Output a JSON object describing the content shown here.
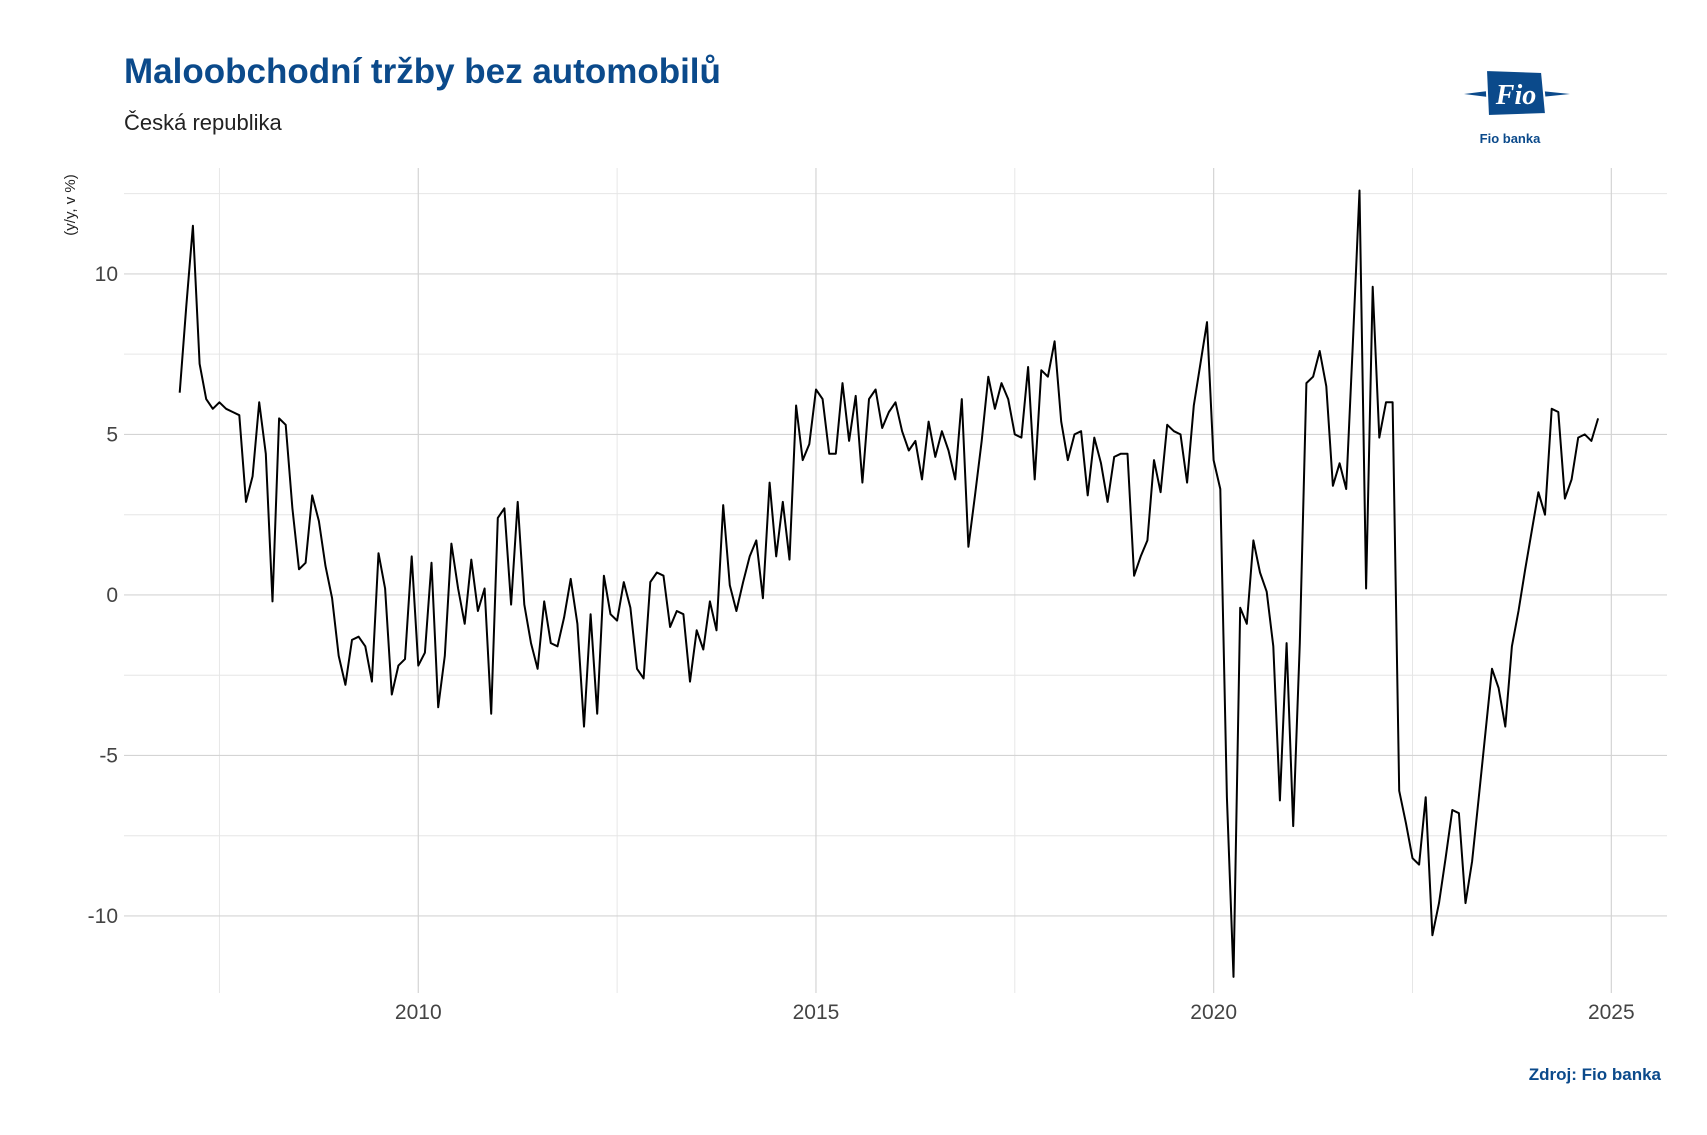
{
  "header": {
    "title": "Maloobchodní tržby bez automobilů",
    "subtitle": "Česká republika"
  },
  "footer": {
    "source": "Zdroj: Fio banka"
  },
  "logo": {
    "wordmark": "Fio",
    "caption": "Fio banka",
    "icon": "fio-banka-logo",
    "color": "#0b4a8b"
  },
  "chart_data": {
    "type": "line",
    "title": "Maloobchodní tržby bez automobilů",
    "subtitle": "Česká republika",
    "ylabel": "(y/y, v %)",
    "xlabel": "",
    "xlim": [
      2006.3,
      2025.7
    ],
    "ylim": [
      -12.4,
      13.3
    ],
    "x_ticks": [
      2010,
      2015,
      2020,
      2025
    ],
    "x_tick_labels": [
      "2010",
      "2015",
      "2020",
      "2025"
    ],
    "y_ticks": [
      -10,
      -5,
      0,
      5,
      10
    ],
    "y_tick_labels": [
      "-10",
      "-5",
      "0",
      "5",
      "10"
    ],
    "grid": true,
    "line_color": "#000000",
    "series": [
      {
        "start": "2007-01",
        "frequency": "monthly",
        "values": [
          6.3,
          9.0,
          11.5,
          7.2,
          6.1,
          5.8,
          6.0,
          5.8,
          5.7,
          5.6,
          2.9,
          3.7,
          6.0,
          4.4,
          -0.2,
          5.5,
          5.3,
          2.7,
          0.8,
          1.0,
          3.1,
          2.3,
          0.9,
          -0.1,
          -1.9,
          -2.8,
          -1.4,
          -1.3,
          -1.6,
          -2.7,
          1.3,
          0.2,
          -3.1,
          -2.2,
          -2.0,
          1.2,
          -2.2,
          -1.8,
          1.0,
          -3.5,
          -1.9,
          1.6,
          0.2,
          -0.9,
          1.1,
          -0.5,
          0.2,
          -3.7,
          2.4,
          2.7,
          -0.3,
          2.9,
          -0.3,
          -1.5,
          -2.3,
          -0.2,
          -1.5,
          -1.6,
          -0.7,
          0.5,
          -0.9,
          -4.1,
          -0.6,
          -3.7,
          0.6,
          -0.6,
          -0.8,
          0.4,
          -0.4,
          -2.3,
          -2.6,
          0.4,
          0.7,
          0.6,
          -1.0,
          -0.5,
          -0.6,
          -2.7,
          -1.1,
          -1.7,
          -0.2,
          -1.1,
          2.8,
          0.3,
          -0.5,
          0.4,
          1.2,
          1.7,
          -0.1,
          3.5,
          1.2,
          2.9,
          1.1,
          5.9,
          4.2,
          4.7,
          6.4,
          6.1,
          4.4,
          4.4,
          6.6,
          4.8,
          6.2,
          3.5,
          6.1,
          6.4,
          5.2,
          5.7,
          6.0,
          5.1,
          4.5,
          4.8,
          3.6,
          5.4,
          4.3,
          5.1,
          4.5,
          3.6,
          6.1,
          1.5,
          3.1,
          4.8,
          6.8,
          5.8,
          6.6,
          6.1,
          5.0,
          4.9,
          7.1,
          3.6,
          7.0,
          6.8,
          7.9,
          5.4,
          4.2,
          5.0,
          5.1,
          3.1,
          4.9,
          4.1,
          2.9,
          4.3,
          4.4,
          4.4,
          0.6,
          1.2,
          1.7,
          4.2,
          3.2,
          5.3,
          5.1,
          5.0,
          3.5,
          5.9,
          7.2,
          8.5,
          4.2,
          3.3,
          -6.3,
          -11.9,
          -0.4,
          -0.9,
          1.7,
          0.7,
          0.1,
          -1.6,
          -6.4,
          -1.5,
          -7.2,
          -1.5,
          6.6,
          6.8,
          7.6,
          6.5,
          3.4,
          4.1,
          3.3,
          7.8,
          12.6,
          0.2,
          9.6,
          4.9,
          6.0,
          6.0,
          -6.1,
          -7.1,
          -8.2,
          -8.4,
          -6.3,
          -10.6,
          -9.6,
          -8.2,
          -6.7,
          -6.8,
          -9.6,
          -8.3,
          -6.3,
          -4.3,
          -2.3,
          -2.9,
          -4.1,
          -1.6,
          -0.5,
          0.8,
          2.0,
          3.2,
          2.5,
          5.8,
          5.7,
          3.0,
          3.6,
          4.9,
          5.0,
          4.8,
          5.5
        ]
      }
    ]
  }
}
